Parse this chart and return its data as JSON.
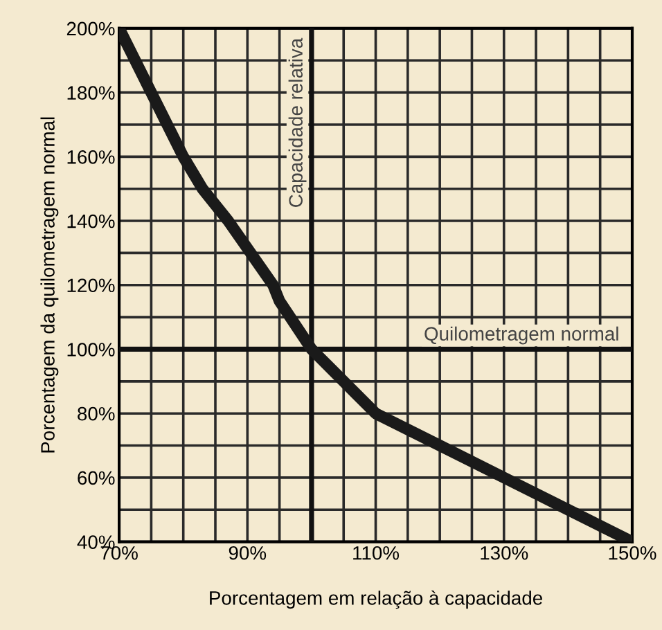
{
  "chart_data": {
    "type": "line",
    "xlabel": "Porcentagem em relação à capacidade",
    "ylabel": "Porcentagem da quilometragem normal",
    "x": [
      70,
      75,
      80,
      83,
      87,
      94,
      95,
      100,
      110,
      120,
      130,
      140,
      150
    ],
    "series": [
      {
        "color": "#1a1a1a",
        "values": [
          200,
          180,
          160,
          150,
          140,
          120,
          115,
          100,
          80,
          70,
          60,
          50,
          40
        ]
      }
    ],
    "xlim": [
      70,
      150
    ],
    "ylim": [
      40,
      200
    ],
    "xticks": [
      {
        "value": 70,
        "label": "70%"
      },
      {
        "value": 75,
        "label": null
      },
      {
        "value": 80,
        "label": null
      },
      {
        "value": 85,
        "label": null
      },
      {
        "value": 90,
        "label": "90%"
      },
      {
        "value": 95,
        "label": null
      },
      {
        "value": 105,
        "label": null
      },
      {
        "value": 110,
        "label": "110%"
      },
      {
        "value": 115,
        "label": null
      },
      {
        "value": 120,
        "label": null
      },
      {
        "value": 125,
        "label": null
      },
      {
        "value": 130,
        "label": "130%"
      },
      {
        "value": 135,
        "label": null
      },
      {
        "value": 140,
        "label": null
      },
      {
        "value": 145,
        "label": null
      },
      {
        "value": 150,
        "label": "150%"
      }
    ],
    "yticks": [
      {
        "value": 40,
        "label": "40%"
      },
      {
        "value": 50,
        "label": null
      },
      {
        "value": 60,
        "label": "60%"
      },
      {
        "value": 70,
        "label": null
      },
      {
        "value": 80,
        "label": "80%"
      },
      {
        "value": 90,
        "label": null
      },
      {
        "value": 100,
        "label": "100%"
      },
      {
        "value": 110,
        "label": null
      },
      {
        "value": 120,
        "label": "120%"
      },
      {
        "value": 130,
        "label": null
      },
      {
        "value": 140,
        "label": "140%"
      },
      {
        "value": 150,
        "label": null
      },
      {
        "value": 160,
        "label": "160%"
      },
      {
        "value": 170,
        "label": null
      },
      {
        "value": 180,
        "label": "180%"
      },
      {
        "value": 190,
        "label": null
      },
      {
        "value": 200,
        "label": "200%"
      }
    ],
    "grid": true,
    "ref_lines": [
      {
        "axis": "x",
        "value": 100,
        "label": "Capacidade relativa",
        "color": "#111111"
      },
      {
        "axis": "y",
        "value": 100,
        "label": "Quilometragem normal",
        "color": "#111111"
      }
    ],
    "line_style": "solid",
    "marker": "none",
    "legend": false
  }
}
